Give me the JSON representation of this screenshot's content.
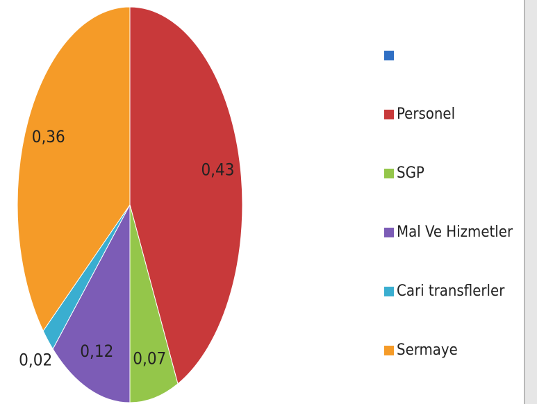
{
  "chart_data": {
    "type": "pie",
    "categories": [
      null,
      "Personel",
      "SGP",
      "Mal Ve Hizmetler",
      "Cari transflerler",
      "Sermaye"
    ],
    "values": [
      null,
      0.43,
      0.07,
      0.12,
      0.02,
      0.36
    ],
    "value_labels": [
      null,
      "0,43",
      "0,07",
      "0,12",
      "0,02",
      "0,36"
    ],
    "colors": [
      "#2f6fc4",
      "#c8393a",
      "#94c64a",
      "#7c5cb6",
      "#3aaed0",
      "#f59b28"
    ],
    "legend": "right"
  }
}
